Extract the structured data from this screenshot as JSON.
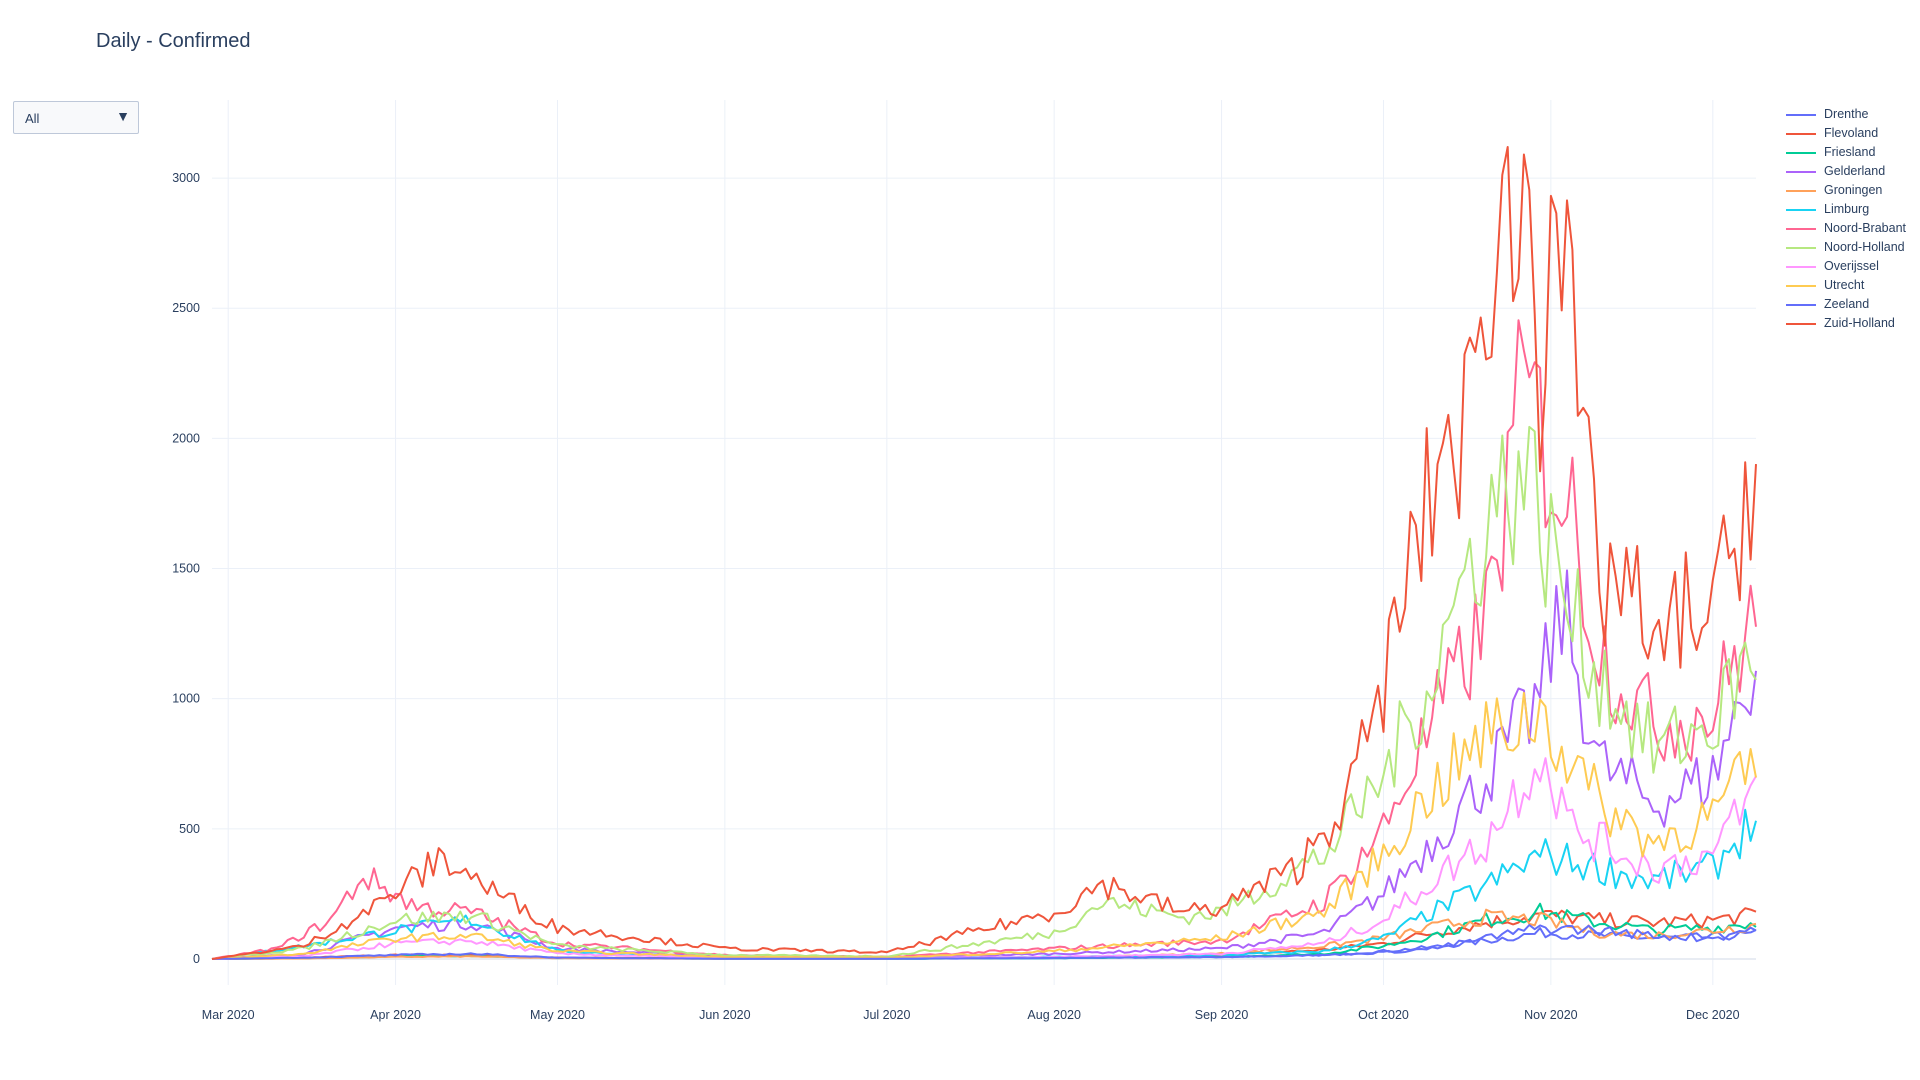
{
  "title": "Daily - Confirmed",
  "dropdown": {
    "selected": "All",
    "arrow_icon": "triangle-down-icon"
  },
  "chart_data": {
    "type": "line",
    "title": "Daily - Confirmed",
    "xlabel": "",
    "ylabel": "",
    "x_start": "2020-02-27",
    "x_end": "2020-12-09",
    "xlim": [
      "2020-02-27",
      "2020-12-09"
    ],
    "ylim": [
      -100,
      3300
    ],
    "y_ticks": [
      0,
      500,
      1000,
      1500,
      2000,
      2500,
      3000
    ],
    "x_ticks": [
      {
        "date": "2020-03-01",
        "label": "Mar 2020"
      },
      {
        "date": "2020-04-01",
        "label": "Apr 2020"
      },
      {
        "date": "2020-05-01",
        "label": "May 2020"
      },
      {
        "date": "2020-06-01",
        "label": "Jun 2020"
      },
      {
        "date": "2020-07-01",
        "label": "Jul 2020"
      },
      {
        "date": "2020-08-01",
        "label": "Aug 2020"
      },
      {
        "date": "2020-09-01",
        "label": "Sep 2020"
      },
      {
        "date": "2020-10-01",
        "label": "Oct 2020"
      },
      {
        "date": "2020-11-01",
        "label": "Nov 2020"
      },
      {
        "date": "2020-12-01",
        "label": "Dec 2020"
      }
    ],
    "grid": true,
    "legend_position": "right",
    "series": [
      {
        "name": "Drenthe",
        "color": "#636efa",
        "points": [
          [
            "2020-02-27",
            0
          ],
          [
            "2020-03-15",
            3
          ],
          [
            "2020-04-01",
            12
          ],
          [
            "2020-04-15",
            14
          ],
          [
            "2020-05-01",
            5
          ],
          [
            "2020-06-01",
            1
          ],
          [
            "2020-07-01",
            1
          ],
          [
            "2020-08-01",
            3
          ],
          [
            "2020-09-01",
            8
          ],
          [
            "2020-09-20",
            15
          ],
          [
            "2020-10-01",
            30
          ],
          [
            "2020-10-10",
            45
          ],
          [
            "2020-10-20",
            70
          ],
          [
            "2020-10-30",
            100
          ],
          [
            "2020-11-10",
            90
          ],
          [
            "2020-11-20",
            80
          ],
          [
            "2020-12-01",
            85
          ],
          [
            "2020-12-09",
            95
          ]
        ]
      },
      {
        "name": "Flevoland",
        "color": "#ef553b",
        "points": [
          [
            "2020-02-27",
            0
          ],
          [
            "2020-03-15",
            5
          ],
          [
            "2020-04-01",
            15
          ],
          [
            "2020-04-15",
            15
          ],
          [
            "2020-05-01",
            5
          ],
          [
            "2020-06-01",
            2
          ],
          [
            "2020-07-01",
            2
          ],
          [
            "2020-08-01",
            5
          ],
          [
            "2020-09-01",
            15
          ],
          [
            "2020-09-20",
            35
          ],
          [
            "2020-10-01",
            60
          ],
          [
            "2020-10-10",
            100
          ],
          [
            "2020-10-20",
            140
          ],
          [
            "2020-10-30",
            170
          ],
          [
            "2020-11-10",
            150
          ],
          [
            "2020-11-20",
            140
          ],
          [
            "2020-12-01",
            150
          ],
          [
            "2020-12-09",
            170
          ]
        ]
      },
      {
        "name": "Friesland",
        "color": "#00cc96",
        "points": [
          [
            "2020-02-27",
            0
          ],
          [
            "2020-03-15",
            3
          ],
          [
            "2020-04-01",
            10
          ],
          [
            "2020-04-15",
            12
          ],
          [
            "2020-05-01",
            4
          ],
          [
            "2020-06-01",
            1
          ],
          [
            "2020-07-01",
            1
          ],
          [
            "2020-08-01",
            3
          ],
          [
            "2020-09-01",
            8
          ],
          [
            "2020-09-20",
            20
          ],
          [
            "2020-10-01",
            50
          ],
          [
            "2020-10-10",
            90
          ],
          [
            "2020-10-20",
            150
          ],
          [
            "2020-10-30",
            180
          ],
          [
            "2020-11-10",
            140
          ],
          [
            "2020-11-20",
            110
          ],
          [
            "2020-12-01",
            120
          ],
          [
            "2020-12-09",
            140
          ]
        ]
      },
      {
        "name": "Gelderland",
        "color": "#ab63fa",
        "points": [
          [
            "2020-02-27",
            0
          ],
          [
            "2020-03-15",
            20
          ],
          [
            "2020-04-01",
            120
          ],
          [
            "2020-04-15",
            140
          ],
          [
            "2020-05-01",
            40
          ],
          [
            "2020-06-01",
            8
          ],
          [
            "2020-07-01",
            5
          ],
          [
            "2020-08-01",
            20
          ],
          [
            "2020-09-01",
            40
          ],
          [
            "2020-09-20",
            100
          ],
          [
            "2020-10-01",
            250
          ],
          [
            "2020-10-10",
            450
          ],
          [
            "2020-10-20",
            700
          ],
          [
            "2020-10-30",
            1000
          ],
          [
            "2020-11-03",
            1350
          ],
          [
            "2020-11-10",
            750
          ],
          [
            "2020-11-20",
            600
          ],
          [
            "2020-12-01",
            700
          ],
          [
            "2020-12-09",
            1150
          ]
        ]
      },
      {
        "name": "Groningen",
        "color": "#ffa15a",
        "points": [
          [
            "2020-02-27",
            0
          ],
          [
            "2020-03-15",
            2
          ],
          [
            "2020-04-01",
            8
          ],
          [
            "2020-04-15",
            10
          ],
          [
            "2020-05-01",
            3
          ],
          [
            "2020-06-01",
            1
          ],
          [
            "2020-07-01",
            1
          ],
          [
            "2020-08-01",
            5
          ],
          [
            "2020-09-01",
            20
          ],
          [
            "2020-09-20",
            50
          ],
          [
            "2020-10-01",
            80
          ],
          [
            "2020-10-10",
            120
          ],
          [
            "2020-10-20",
            160
          ],
          [
            "2020-10-30",
            150
          ],
          [
            "2020-11-10",
            100
          ],
          [
            "2020-11-20",
            90
          ],
          [
            "2020-12-01",
            110
          ],
          [
            "2020-12-09",
            130
          ]
        ]
      },
      {
        "name": "Limburg",
        "color": "#19d3f3",
        "points": [
          [
            "2020-02-27",
            0
          ],
          [
            "2020-03-15",
            50
          ],
          [
            "2020-04-01",
            110
          ],
          [
            "2020-04-15",
            150
          ],
          [
            "2020-05-01",
            30
          ],
          [
            "2020-06-01",
            5
          ],
          [
            "2020-07-01",
            3
          ],
          [
            "2020-08-01",
            8
          ],
          [
            "2020-09-01",
            15
          ],
          [
            "2020-09-20",
            30
          ],
          [
            "2020-10-01",
            80
          ],
          [
            "2020-10-10",
            180
          ],
          [
            "2020-10-20",
            280
          ],
          [
            "2020-10-30",
            400
          ],
          [
            "2020-11-10",
            350
          ],
          [
            "2020-11-20",
            300
          ],
          [
            "2020-12-01",
            350
          ],
          [
            "2020-12-09",
            550
          ]
        ]
      },
      {
        "name": "Noord-Brabant",
        "color": "#ff6692",
        "points": [
          [
            "2020-02-27",
            0
          ],
          [
            "2020-03-10",
            40
          ],
          [
            "2020-03-20",
            150
          ],
          [
            "2020-03-26",
            320
          ],
          [
            "2020-04-05",
            200
          ],
          [
            "2020-04-15",
            180
          ],
          [
            "2020-05-01",
            60
          ],
          [
            "2020-06-01",
            15
          ],
          [
            "2020-07-01",
            8
          ],
          [
            "2020-08-01",
            40
          ],
          [
            "2020-09-01",
            70
          ],
          [
            "2020-09-20",
            220
          ],
          [
            "2020-10-01",
            500
          ],
          [
            "2020-10-10",
            900
          ],
          [
            "2020-10-20",
            1300
          ],
          [
            "2020-10-27",
            2200
          ],
          [
            "2020-11-05",
            1700
          ],
          [
            "2020-11-10",
            1200
          ],
          [
            "2020-11-20",
            900
          ],
          [
            "2020-12-01",
            950
          ],
          [
            "2020-12-09",
            1350
          ]
        ]
      },
      {
        "name": "Noord-Holland",
        "color": "#b6e880",
        "points": [
          [
            "2020-02-27",
            0
          ],
          [
            "2020-03-15",
            40
          ],
          [
            "2020-04-01",
            150
          ],
          [
            "2020-04-15",
            170
          ],
          [
            "2020-05-01",
            50
          ],
          [
            "2020-06-01",
            15
          ],
          [
            "2020-07-01",
            10
          ],
          [
            "2020-08-01",
            100
          ],
          [
            "2020-08-10",
            220
          ],
          [
            "2020-08-25",
            160
          ],
          [
            "2020-09-01",
            180
          ],
          [
            "2020-09-20",
            400
          ],
          [
            "2020-10-01",
            700
          ],
          [
            "2020-10-10",
            1100
          ],
          [
            "2020-10-20",
            1700
          ],
          [
            "2020-10-27",
            1900
          ],
          [
            "2020-11-05",
            1300
          ],
          [
            "2020-11-10",
            1100
          ],
          [
            "2020-11-20",
            800
          ],
          [
            "2020-12-01",
            900
          ],
          [
            "2020-12-09",
            1200
          ]
        ]
      },
      {
        "name": "Overijssel",
        "color": "#ff97ff",
        "points": [
          [
            "2020-02-27",
            0
          ],
          [
            "2020-03-15",
            10
          ],
          [
            "2020-04-01",
            60
          ],
          [
            "2020-04-15",
            70
          ],
          [
            "2020-05-01",
            20
          ],
          [
            "2020-06-01",
            4
          ],
          [
            "2020-07-01",
            3
          ],
          [
            "2020-08-01",
            8
          ],
          [
            "2020-09-01",
            20
          ],
          [
            "2020-09-20",
            60
          ],
          [
            "2020-10-01",
            150
          ],
          [
            "2020-10-10",
            300
          ],
          [
            "2020-10-20",
            450
          ],
          [
            "2020-10-30",
            800
          ],
          [
            "2020-11-05",
            500
          ],
          [
            "2020-11-10",
            450
          ],
          [
            "2020-11-20",
            350
          ],
          [
            "2020-12-01",
            400
          ],
          [
            "2020-12-09",
            650
          ]
        ]
      },
      {
        "name": "Utrecht",
        "color": "#fecb52",
        "points": [
          [
            "2020-02-27",
            0
          ],
          [
            "2020-03-15",
            20
          ],
          [
            "2020-04-01",
            80
          ],
          [
            "2020-04-15",
            90
          ],
          [
            "2020-05-01",
            30
          ],
          [
            "2020-06-01",
            8
          ],
          [
            "2020-07-01",
            5
          ],
          [
            "2020-08-01",
            30
          ],
          [
            "2020-09-01",
            80
          ],
          [
            "2020-09-20",
            180
          ],
          [
            "2020-10-01",
            400
          ],
          [
            "2020-10-10",
            650
          ],
          [
            "2020-10-20",
            850
          ],
          [
            "2020-10-30",
            950
          ],
          [
            "2020-11-10",
            600
          ],
          [
            "2020-11-20",
            450
          ],
          [
            "2020-12-01",
            550
          ],
          [
            "2020-12-09",
            750
          ]
        ]
      },
      {
        "name": "Zeeland",
        "color": "#636efa",
        "points": [
          [
            "2020-02-27",
            0
          ],
          [
            "2020-03-15",
            5
          ],
          [
            "2020-04-01",
            15
          ],
          [
            "2020-04-15",
            20
          ],
          [
            "2020-05-01",
            5
          ],
          [
            "2020-06-01",
            1
          ],
          [
            "2020-07-01",
            1
          ],
          [
            "2020-08-01",
            4
          ],
          [
            "2020-09-01",
            8
          ],
          [
            "2020-09-20",
            15
          ],
          [
            "2020-10-01",
            25
          ],
          [
            "2020-10-10",
            40
          ],
          [
            "2020-10-20",
            80
          ],
          [
            "2020-10-30",
            120
          ],
          [
            "2020-11-10",
            110
          ],
          [
            "2020-11-20",
            90
          ],
          [
            "2020-12-01",
            80
          ],
          [
            "2020-12-09",
            120
          ]
        ]
      },
      {
        "name": "Zuid-Holland",
        "color": "#ef553b",
        "points": [
          [
            "2020-02-27",
            0
          ],
          [
            "2020-03-15",
            50
          ],
          [
            "2020-03-28",
            200
          ],
          [
            "2020-04-10",
            390
          ],
          [
            "2020-04-20",
            250
          ],
          [
            "2020-05-01",
            120
          ],
          [
            "2020-06-01",
            40
          ],
          [
            "2020-07-01",
            25
          ],
          [
            "2020-08-01",
            180
          ],
          [
            "2020-08-10",
            290
          ],
          [
            "2020-08-25",
            180
          ],
          [
            "2020-09-01",
            200
          ],
          [
            "2020-09-15",
            350
          ],
          [
            "2020-09-25",
            650
          ],
          [
            "2020-10-01",
            1050
          ],
          [
            "2020-10-06",
            1500
          ],
          [
            "2020-10-12",
            1950
          ],
          [
            "2020-10-18",
            2100
          ],
          [
            "2020-10-22",
            3000
          ],
          [
            "2020-10-26",
            2650
          ],
          [
            "2020-10-28",
            3190
          ],
          [
            "2020-10-30",
            2170
          ],
          [
            "2020-11-01",
            3190
          ],
          [
            "2020-11-05",
            2300
          ],
          [
            "2020-11-10",
            1400
          ],
          [
            "2020-11-15",
            1500
          ],
          [
            "2020-11-20",
            1100
          ],
          [
            "2020-11-25",
            1350
          ],
          [
            "2020-12-01",
            1300
          ],
          [
            "2020-12-05",
            1600
          ],
          [
            "2020-12-09",
            1970
          ]
        ]
      }
    ]
  }
}
